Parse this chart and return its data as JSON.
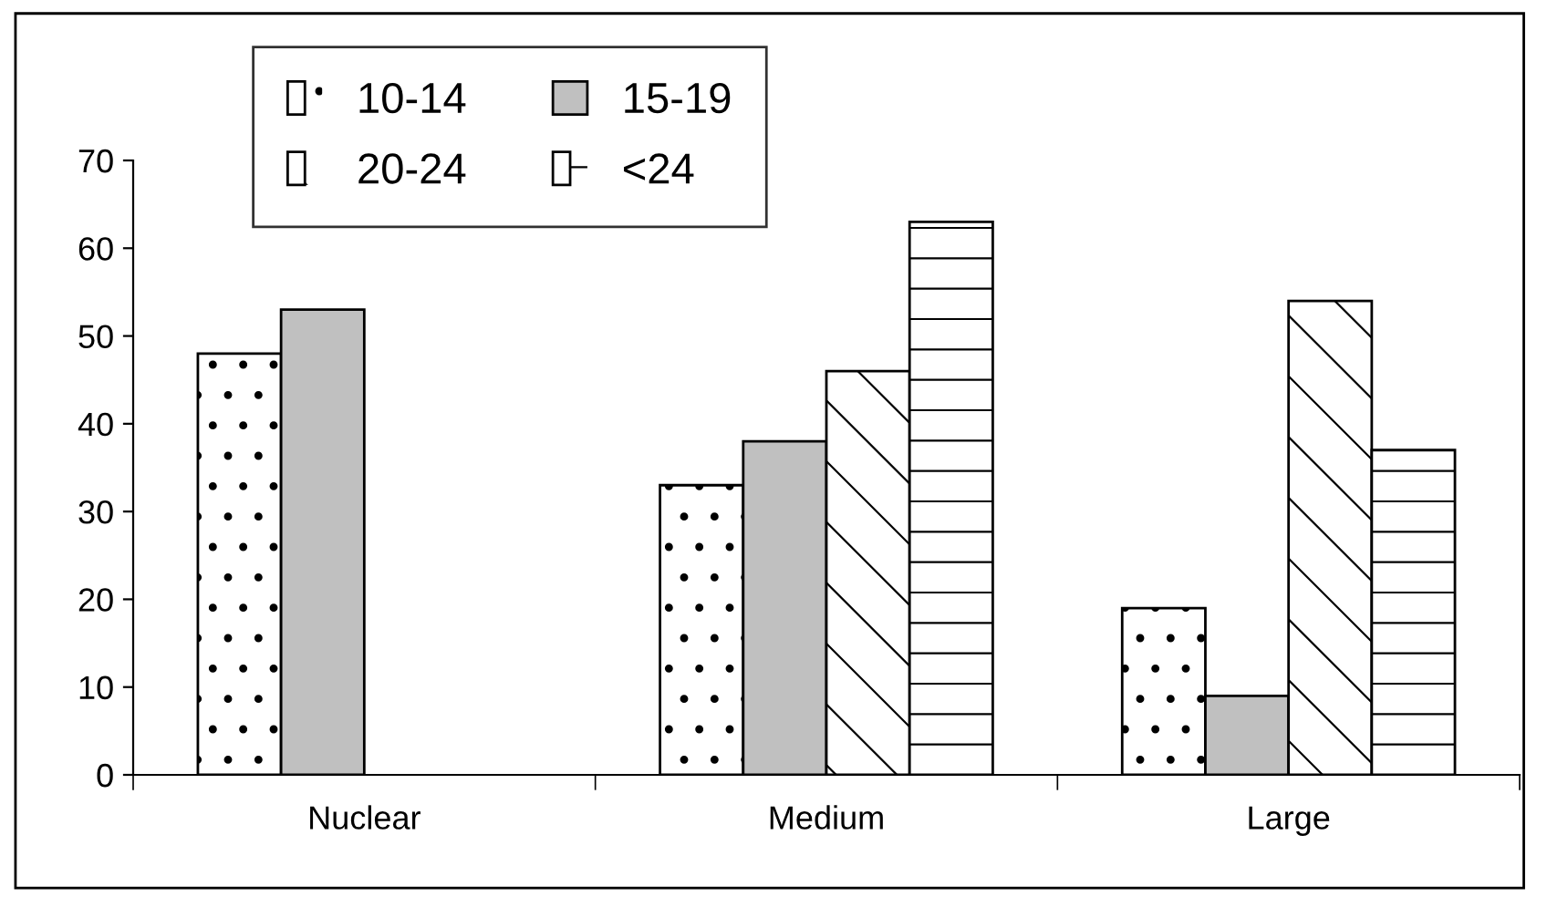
{
  "chart_data": {
    "type": "bar",
    "categories": [
      "Nuclear",
      "Medium",
      "Large"
    ],
    "series": [
      {
        "name": "10-14",
        "color": "#ffffff",
        "values": [
          48,
          33,
          19
        ]
      },
      {
        "name": "15-19",
        "color": "#c0c0c0",
        "values": [
          53,
          38,
          9
        ]
      },
      {
        "name": "20-24",
        "color": "#ffffff",
        "values": [
          null,
          46,
          54
        ]
      },
      {
        "name": "<24",
        "color": "#ffffff",
        "values": [
          null,
          63,
          37
        ]
      }
    ],
    "ylim": [
      0,
      70
    ],
    "yticks": [
      0,
      10,
      20,
      30,
      40,
      50,
      60,
      70
    ],
    "grid": false,
    "legend": "top left"
  }
}
